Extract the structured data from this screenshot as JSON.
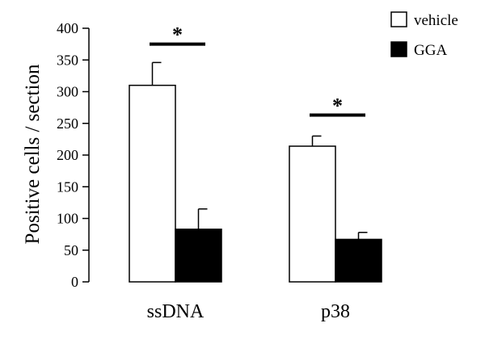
{
  "chart_data": {
    "type": "bar",
    "title": "",
    "xlabel": "",
    "ylabel": "Positive cells / section",
    "ylim": [
      0,
      400
    ],
    "yticks": [
      0,
      50,
      100,
      150,
      200,
      250,
      300,
      350,
      400
    ],
    "categories": [
      "ssDNA",
      "p38"
    ],
    "series": [
      {
        "name": "vehicle",
        "fill": "#ffffff",
        "values": [
          310,
          214
        ],
        "errors": [
          36,
          16
        ]
      },
      {
        "name": "GGA",
        "fill": "#000000",
        "values": [
          83,
          67
        ],
        "errors": [
          32,
          11
        ]
      }
    ],
    "significance": [
      {
        "category": "ssDNA",
        "label": "*",
        "y": 375
      },
      {
        "category": "p38",
        "label": "*",
        "y": 263
      }
    ],
    "legend_position": "top-right",
    "grid": false
  }
}
